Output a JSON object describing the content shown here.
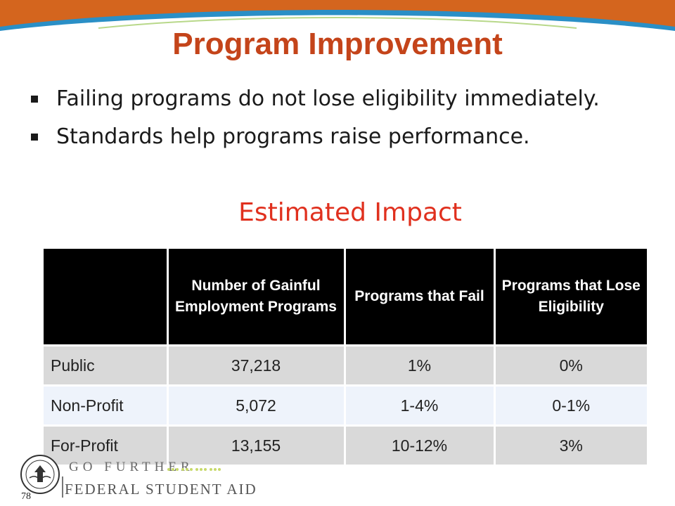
{
  "slide": {
    "title": "Program Improvement",
    "bullets": [
      "Failing programs do not lose eligibility immediately.",
      "Standards help programs raise performance."
    ],
    "subtitle": "Estimated Impact",
    "page_number": "78"
  },
  "table": {
    "headers": [
      "",
      "Number of Gainful Employment Programs",
      "Programs that Fail",
      "Programs that Lose Eligibility"
    ],
    "rows": [
      [
        "Public",
        "37,218",
        "1%",
        "0%"
      ],
      [
        "Non-Profit",
        "5,072",
        "1-4%",
        "0-1%"
      ],
      [
        "For-Profit",
        "13,155",
        "10-12%",
        "3%"
      ]
    ]
  },
  "footer": {
    "brand_top": "GO FURTHER",
    "brand_bottom": "FEDERAL STUDENT AID",
    "seal_icon": "department-of-education-seal-icon"
  },
  "colors": {
    "title": "#c4441a",
    "subtitle": "#e0301e",
    "top_band_orange": "#d4651e",
    "top_band_blue": "#2a8fc6",
    "table_header": "#000000"
  }
}
